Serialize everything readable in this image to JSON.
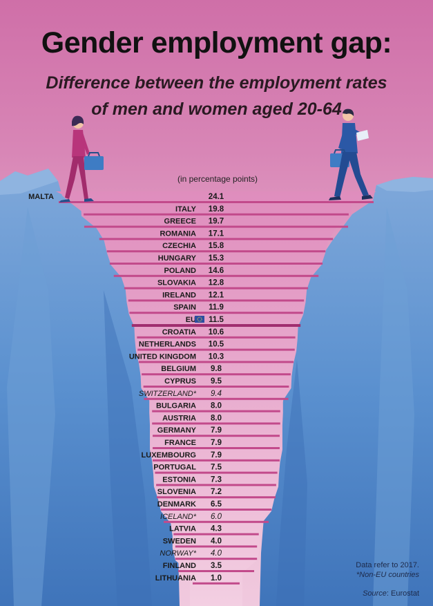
{
  "title": "Gender employment gap:",
  "subtitle_line1": "Difference between the employment rates",
  "subtitle_line2": "of men and women aged 20-64",
  "unit_note": "(in percentage points)",
  "footer": {
    "note": "Data refer to 2017.",
    "non_eu": "*Non-EU countries",
    "source_label": "Source",
    "source_value": ": Eurostat"
  },
  "colors": {
    "bar": "#c24a8b",
    "bar_eu": "#a02e6f",
    "funnel_top": "#df8dbd",
    "funnel_bottom": "#f3cfe2",
    "cliff": "#4f86c6",
    "woman": "#b8357b",
    "man": "#2b58a6"
  },
  "chart_data": {
    "type": "bar",
    "orientation": "horizontal",
    "unit": "percentage points",
    "categories": [
      "MALTA",
      "ITALY",
      "GREECE",
      "ROMANIA",
      "CZECHIA",
      "HUNGARY",
      "POLAND",
      "SLOVAKIA",
      "IRELAND",
      "SPAIN",
      "EU",
      "CROATIA",
      "NETHERLANDS",
      "UNITED KINGDOM",
      "BELGIUM",
      "CYPRUS",
      "SWITZERLAND*",
      "BULGARIA",
      "AUSTRIA",
      "GERMANY",
      "FRANCE",
      "LUXEMBOURG",
      "PORTUGAL",
      "ESTONIA",
      "SLOVENIA",
      "DENMARK",
      "ICELAND*",
      "LATVIA",
      "SWEDEN",
      "NORWAY*",
      "FINLAND",
      "LITHUANIA"
    ],
    "labels": [
      "24.1",
      "19.8",
      "19.7",
      "17.1",
      "15.8",
      "15.3",
      "14.6",
      "12.8",
      "12.1",
      "11.9",
      "11.5",
      "10.6",
      "10.5",
      "10.3",
      "9.8",
      "9.5",
      "9.4",
      "8.0",
      "8.0",
      "7.9",
      "7.9",
      "7.9",
      "7.5",
      "7.3",
      "7.2",
      "6.5",
      "6.0",
      "4.3",
      "4.0",
      "4.0",
      "3.5",
      "1.0"
    ],
    "values": [
      24.1,
      19.8,
      19.7,
      17.1,
      15.8,
      15.3,
      14.6,
      12.8,
      12.1,
      11.9,
      11.5,
      10.6,
      10.5,
      10.3,
      9.8,
      9.5,
      9.4,
      8.0,
      8.0,
      7.9,
      7.9,
      7.9,
      7.5,
      7.3,
      7.2,
      6.5,
      6.0,
      4.3,
      4.0,
      4.0,
      3.5,
      1.0
    ],
    "non_eu": [
      "SWITZERLAND*",
      "ICELAND*",
      "NORWAY*"
    ],
    "highlight": "EU"
  }
}
